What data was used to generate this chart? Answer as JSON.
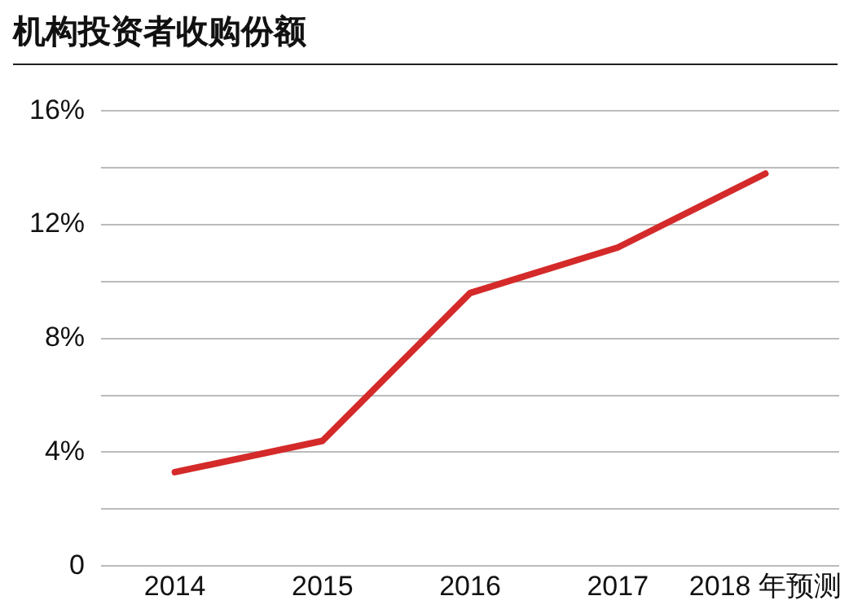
{
  "chart_data": {
    "type": "line",
    "title": "机构投资者收购份额",
    "categories": [
      "2014",
      "2015",
      "2016",
      "2017",
      "2018 年预测"
    ],
    "series": [
      {
        "color": "#d42a2a",
        "values": [
          3.3,
          4.4,
          9.6,
          11.2,
          13.8
        ]
      }
    ],
    "ylim": [
      0,
      16
    ],
    "yticks": [
      {
        "value": 0,
        "label": "0"
      },
      {
        "value": 2,
        "label": null
      },
      {
        "value": 4,
        "label": "4%"
      },
      {
        "value": 6,
        "label": null
      },
      {
        "value": 8,
        "label": "8%"
      },
      {
        "value": 10,
        "label": null
      },
      {
        "value": 12,
        "label": "12%"
      },
      {
        "value": 14,
        "label": null
      },
      {
        "value": 16,
        "label": "16%"
      }
    ],
    "grid": "y",
    "legend": false,
    "marker": "none",
    "line_style": "solid"
  }
}
